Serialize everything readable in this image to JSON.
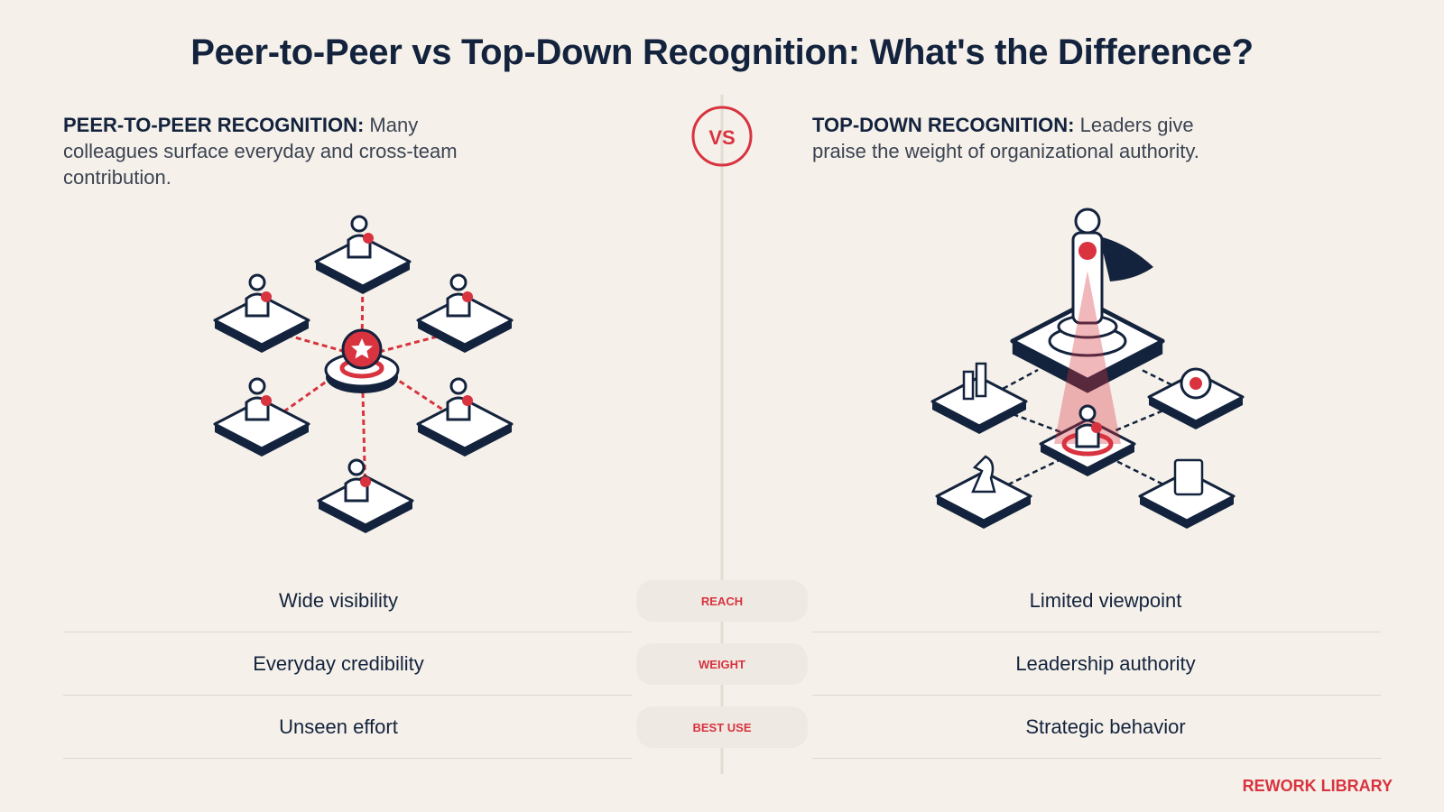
{
  "title": "Peer-to-Peer vs Top-Down Recognition: What's the Difference?",
  "left": {
    "heading": "PEER-TO-PEER RECOGNITION:",
    "description": "Many colleagues surface everyday and cross-team contribution."
  },
  "vs": "VS",
  "right": {
    "heading": "TOP-DOWN RECOGNITION:",
    "description": "Leaders give praise the weight of organizational authority."
  },
  "comparison": {
    "rows": [
      {
        "label": "REACH",
        "left": "Wide visibility",
        "right": "Limited viewpoint"
      },
      {
        "label": "WEIGHT",
        "left": "Everyday credibility",
        "right": "Leadership authority"
      },
      {
        "label": "BEST USE",
        "left": "Unseen effort",
        "right": "Strategic behavior"
      }
    ]
  },
  "footer": "REWORK LIBRARY"
}
